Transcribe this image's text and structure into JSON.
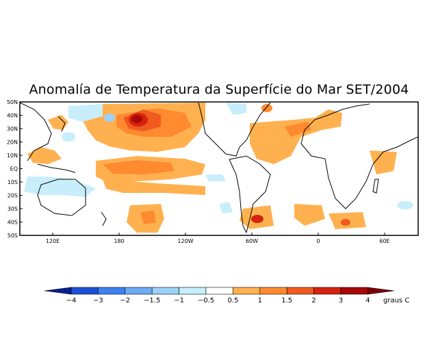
{
  "title": "Anomalía de Temperatura da Superfície do Mar SET/2004",
  "lat_labels": [
    "50N",
    "40N",
    "30N",
    "20N",
    "10N",
    "EQ",
    "10S",
    "20S",
    "30S",
    "40S",
    "50S"
  ],
  "lon_labels": [
    "120E",
    "180",
    "120W",
    "60W",
    "0",
    "60E"
  ],
  "colorbar": {
    "labels": [
      "−4",
      "−3",
      "−2",
      "−1.5",
      "−1",
      "−0.5",
      "0.5",
      "1",
      "1.5",
      "2",
      "3",
      "4"
    ],
    "colors": [
      "#0b1f8c",
      "#1c4fd6",
      "#3d82ee",
      "#6eaaf3",
      "#9dd0f7",
      "#c8eefb",
      "#ffffff",
      "#ffb150",
      "#ff8a30",
      "#f15a1e",
      "#d5230f",
      "#a80808",
      "#7d0000"
    ],
    "unit": "graus C"
  }
}
